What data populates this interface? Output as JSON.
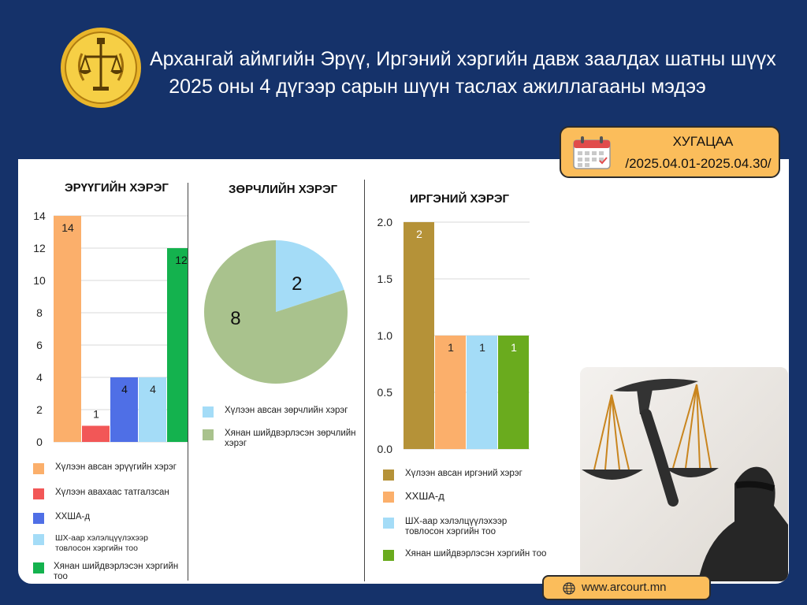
{
  "header": {
    "title_line1": "Архангай аймгийн Эрүү, Иргэний хэргийн давж заалдах шатны шүүх",
    "title_line2": "2025 оны 4 дүгээр сарын шүүн таслах ажиллагааны мэдээ"
  },
  "period": {
    "label": "ХУГАЦАА",
    "range": "/2025.04.01-2025.04.30/"
  },
  "colors": {
    "navy": "#15326a",
    "orange": "#fbbd5b"
  },
  "footer": {
    "url": "www.arcourt.mn"
  },
  "legends": {
    "criminal": [
      "Хүлээн авсан эрүүгийн хэрэг",
      "Хүлээн авахаас татгалзсан",
      "ХХША-д",
      "ШХ-аар хэлэлцүүлэхээр товлосон хэргийн тоо",
      "Хянан шийдвэрлэсэн хэргийн тоо"
    ],
    "violation": [
      "Хүлээн авсан зөрчлийн хэрэг",
      "Хянан шийдвэрлэсэн зөрчлийн хэрэг"
    ],
    "civil": [
      "Хүлээн авсан иргэний хэрэг",
      "ХХША-д",
      "ШХ-аар хэлэлцүүлэхээр товлосон хэргийн тоо",
      "Хянан шийдвэрлэсэн хэргийн тоо"
    ]
  },
  "chart_data": [
    {
      "type": "bar",
      "title": "ЭРҮҮГИЙН ХЭРЭГ",
      "ylim": [
        0,
        14
      ],
      "yticks": [
        "0",
        "2",
        "4",
        "6",
        "8",
        "10",
        "12",
        "14"
      ],
      "grid": true,
      "series": [
        {
          "name": "Хүлээн авсан эрүүгийн хэрэг",
          "value": 14,
          "color": "#fbaf6b"
        },
        {
          "name": "Хүлээн авахаас татгалзсан",
          "value": 1,
          "color": "#f25757"
        },
        {
          "name": "ХХША-д",
          "value": 4,
          "color": "#4f6fe6"
        },
        {
          "name": "ШХ-аар хэлэлцүүлэхээр товлосон хэргийн тоо",
          "value": 4,
          "color": "#a4dcf7"
        },
        {
          "name": "Хянан шийдвэрлэсэн хэргийн тоо",
          "value": 12,
          "color": "#14b24e"
        }
      ]
    },
    {
      "type": "pie",
      "title": "ЗӨРЧЛИЙН ХЭРЭГ",
      "series": [
        {
          "name": "Хүлээн авсан зөрчлийн хэрэг",
          "value": 2,
          "color": "#a4dcf7"
        },
        {
          "name": "Хянан шийдвэрлэсэн зөрчлийн хэрэг",
          "value": 8,
          "color": "#a9c28d"
        }
      ]
    },
    {
      "type": "bar",
      "title": "ИРГЭНИЙ ХЭРЭГ",
      "ylim": [
        0,
        2
      ],
      "yticks": [
        "0.0",
        "0.5",
        "1.0",
        "1.5",
        "2.0"
      ],
      "grid": true,
      "series": [
        {
          "name": "Хүлээн авсан иргэний хэрэг",
          "value": 2,
          "color": "#b59238"
        },
        {
          "name": "ХХША-д",
          "value": 1,
          "color": "#fbaf6b"
        },
        {
          "name": "ШХ-аар хэлэлцүүлэхээр товлосон хэргийн тоо",
          "value": 1,
          "color": "#a4dcf7"
        },
        {
          "name": "Хянан шийдвэрлэсэн хэргийн тоо",
          "value": 1,
          "color": "#6aab1e"
        }
      ]
    }
  ]
}
